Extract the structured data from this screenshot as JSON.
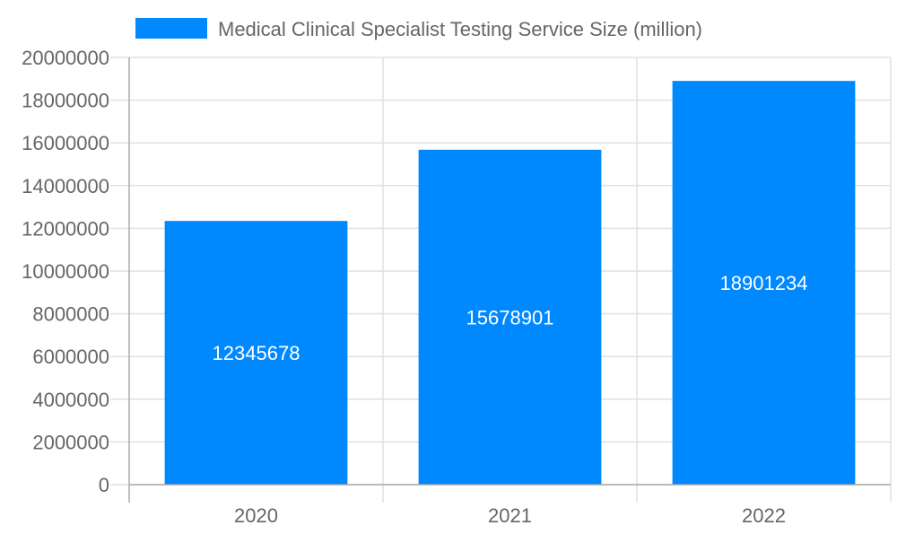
{
  "chart_data": {
    "type": "bar",
    "title": "",
    "xlabel": "",
    "ylabel": "",
    "categories": [
      "2020",
      "2021",
      "2022"
    ],
    "series": [
      {
        "name": "Medical Clinical Specialist Testing Service Size (million)",
        "values": [
          12345678,
          15678901,
          18901234
        ],
        "color": "#0088ff"
      }
    ],
    "ylim": [
      0,
      20000000
    ],
    "yticks": [
      0,
      2000000,
      4000000,
      6000000,
      8000000,
      10000000,
      12000000,
      14000000,
      16000000,
      18000000,
      20000000
    ],
    "grid": true,
    "legend_position": "top",
    "data_labels": true
  }
}
